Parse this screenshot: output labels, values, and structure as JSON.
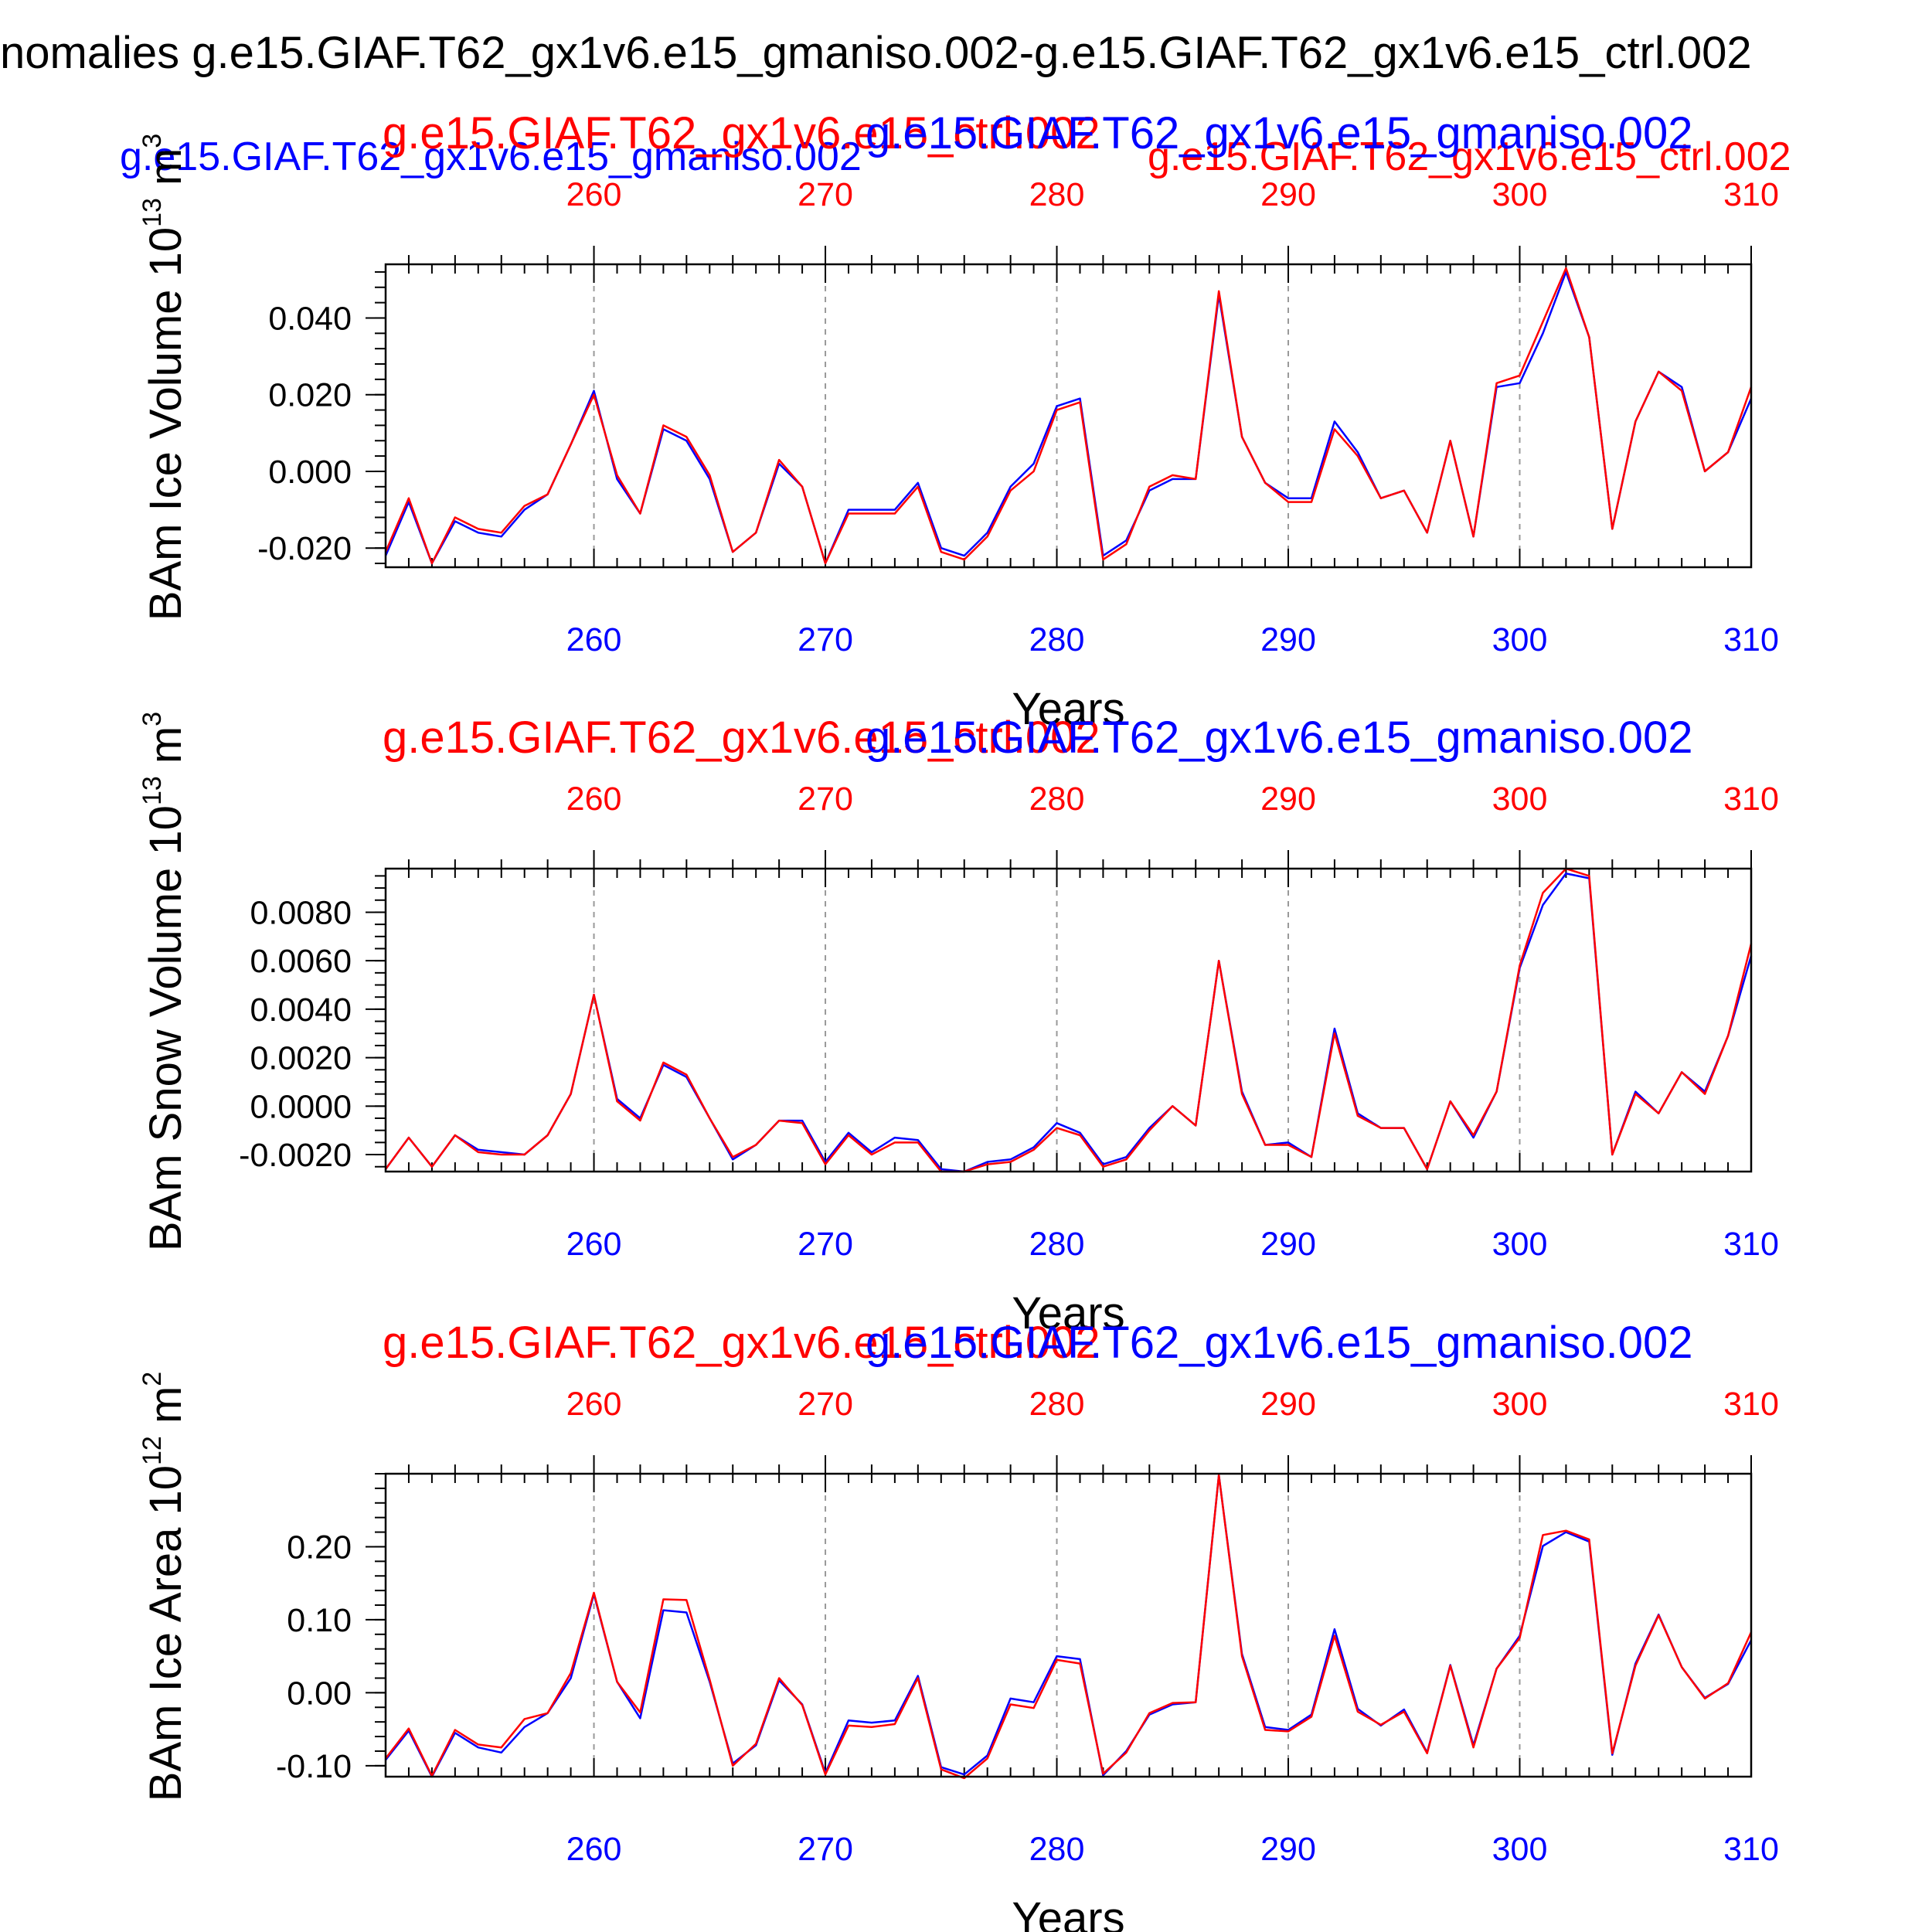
{
  "figure": {
    "title": "nomalies g.e15.GIAF.T62_gx1v6.e15_gmaniso.002-g.e15.GIAF.T62_gx1v6.e15_ctrl.002",
    "top_legend": {
      "blue_label": "g.e15.GIAF.T62_gx1v6.e15_gmaniso.002",
      "red_label": "g.e15.GIAF.T62_gx1v6.e15_ctrl.002"
    }
  },
  "colors": {
    "blue": "#0000ff",
    "red": "#ff0000",
    "black": "#000000",
    "grid": "#999999"
  },
  "chart_data": [
    {
      "type": "line",
      "name": "ice-volume",
      "ylabel": "BAm Ice Volume",
      "yunit_base": "10",
      "yunit_exp": "13",
      "yunit_rest": "m",
      "yunit_pow": "3",
      "xlabel": "Years",
      "top_title_red": "g.e15.GIAF.T62_gx1v6.e15_ctrl.002",
      "top_title_blue": "g.e15.GIAF.T62_gx1v6.e15_gmaniso.002",
      "xlim": [
        251,
        310
      ],
      "ylim": [
        -0.025,
        0.054
      ],
      "xticks": [
        260,
        270,
        280,
        290,
        300,
        310
      ],
      "yticks": [
        -0.02,
        0.0,
        0.02,
        0.04
      ],
      "ytick_labels": [
        "-0.020",
        "0.000",
        "0.020",
        "0.040"
      ],
      "minor_ytick_step": 0.004,
      "x_start": 251,
      "series": [
        {
          "name": "gmaniso.002",
          "color": "blue",
          "values": [
            -0.022,
            -0.008,
            -0.024,
            -0.013,
            -0.016,
            -0.017,
            -0.01,
            -0.006,
            0.007,
            0.021,
            -0.002,
            -0.011,
            0.011,
            0.008,
            -0.002,
            -0.021,
            -0.016,
            0.002,
            -0.004,
            -0.024,
            -0.01,
            -0.01,
            -0.01,
            -0.003,
            -0.02,
            -0.022,
            -0.016,
            -0.004,
            0.002,
            0.017,
            0.019,
            -0.022,
            -0.018,
            -0.005,
            -0.002,
            -0.002,
            0.046,
            0.009,
            -0.003,
            -0.007,
            -0.007,
            0.013,
            0.005,
            -0.007,
            -0.005,
            -0.016,
            0.008,
            -0.017,
            0.022,
            0.023,
            0.036,
            0.052,
            0.035,
            -0.015,
            0.013,
            0.026,
            0.022,
            -0.0,
            0.005,
            0.019
          ]
        },
        {
          "name": "ctrl.002",
          "color": "red",
          "values": [
            -0.021,
            -0.007,
            -0.024,
            -0.012,
            -0.015,
            -0.016,
            -0.009,
            -0.006,
            0.007,
            0.02,
            -0.001,
            -0.011,
            0.012,
            0.009,
            -0.001,
            -0.021,
            -0.016,
            0.003,
            -0.004,
            -0.024,
            -0.011,
            -0.011,
            -0.011,
            -0.004,
            -0.021,
            -0.023,
            -0.017,
            -0.005,
            0.0,
            0.016,
            0.018,
            -0.023,
            -0.019,
            -0.004,
            -0.001,
            -0.002,
            0.047,
            0.009,
            -0.003,
            -0.008,
            -0.008,
            0.011,
            0.004,
            -0.007,
            -0.005,
            -0.016,
            0.008,
            -0.017,
            0.023,
            0.025,
            0.039,
            0.053,
            0.035,
            -0.015,
            0.013,
            0.026,
            0.021,
            -0.0,
            0.005,
            0.022
          ]
        }
      ]
    },
    {
      "type": "line",
      "name": "snow-volume",
      "ylabel": "BAm Snow Volume",
      "yunit_base": "10",
      "yunit_exp": "13",
      "yunit_rest": "m",
      "yunit_pow": "3",
      "xlabel": "Years",
      "top_title_red": "g.e15.GIAF.T62_gx1v6.e15_ctrl.002",
      "top_title_blue": "g.e15.GIAF.T62_gx1v6.e15_gmaniso.002",
      "xlim": [
        251,
        310
      ],
      "ylim": [
        -0.0027,
        0.0098
      ],
      "xticks": [
        260,
        270,
        280,
        290,
        300,
        310
      ],
      "yticks": [
        -0.002,
        0.0,
        0.002,
        0.004,
        0.006,
        0.008
      ],
      "ytick_labels": [
        "-0.0020",
        "0.0000",
        "0.0020",
        "0.0040",
        "0.0060",
        "0.0080"
      ],
      "minor_ytick_step": 0.0005,
      "x_start": 251,
      "series": [
        {
          "name": "gmaniso.002",
          "color": "blue",
          "values": [
            -0.0026,
            -0.0013,
            -0.0025,
            -0.0012,
            -0.0018,
            -0.0019,
            -0.002,
            -0.0012,
            0.0005,
            0.0046,
            0.0003,
            -0.0005,
            0.0017,
            0.0012,
            -0.0005,
            -0.0022,
            -0.0016,
            -0.0006,
            -0.0006,
            -0.0023,
            -0.0011,
            -0.0019,
            -0.0013,
            -0.0014,
            -0.0026,
            -0.0027,
            -0.0023,
            -0.0022,
            -0.0017,
            -0.0007,
            -0.0011,
            -0.0024,
            -0.0021,
            -0.0009,
            0.0,
            -0.0008,
            0.006,
            0.0006,
            -0.0016,
            -0.0015,
            -0.0021,
            0.0032,
            -0.0003,
            -0.0009,
            -0.0009,
            -0.0026,
            0.0002,
            -0.0013,
            0.0006,
            0.0057,
            0.0083,
            0.0096,
            0.0094,
            -0.002,
            0.0006,
            -0.0003,
            0.0014,
            0.0006,
            0.0029,
            0.0062
          ]
        },
        {
          "name": "ctrl.002",
          "color": "red",
          "values": [
            -0.0026,
            -0.0013,
            -0.0025,
            -0.0012,
            -0.0019,
            -0.002,
            -0.002,
            -0.0012,
            0.0005,
            0.0046,
            0.0002,
            -0.0006,
            0.0018,
            0.0013,
            -0.0005,
            -0.0021,
            -0.0016,
            -0.0006,
            -0.0007,
            -0.0024,
            -0.0012,
            -0.002,
            -0.0015,
            -0.0015,
            -0.0027,
            -0.0027,
            -0.0024,
            -0.0023,
            -0.0018,
            -0.0009,
            -0.0012,
            -0.0025,
            -0.0022,
            -0.001,
            0.0,
            -0.0008,
            0.006,
            0.0005,
            -0.0016,
            -0.0016,
            -0.0021,
            0.003,
            -0.0004,
            -0.0009,
            -0.0009,
            -0.0026,
            0.0002,
            -0.0012,
            0.0006,
            0.0058,
            0.0088,
            0.0098,
            0.0095,
            -0.002,
            0.0005,
            -0.0003,
            0.0014,
            0.0005,
            0.0029,
            0.0067
          ]
        }
      ]
    },
    {
      "type": "line",
      "name": "ice-area",
      "ylabel": "BAm Ice Area",
      "yunit_base": "10",
      "yunit_exp": "12",
      "yunit_rest": "m",
      "yunit_pow": "2",
      "xlabel": "Years",
      "top_title_red": "g.e15.GIAF.T62_gx1v6.e15_ctrl.002",
      "top_title_blue": "g.e15.GIAF.T62_gx1v6.e15_gmaniso.002",
      "xlim": [
        251,
        310
      ],
      "ylim": [
        -0.115,
        0.3
      ],
      "xticks": [
        260,
        270,
        280,
        290,
        300,
        310
      ],
      "yticks": [
        -0.1,
        0.0,
        0.1,
        0.2
      ],
      "ytick_labels": [
        "-0.10",
        "0.00",
        "0.10",
        "0.20"
      ],
      "minor_ytick_step": 0.02,
      "x_start": 251,
      "series": [
        {
          "name": "gmaniso.002",
          "color": "blue",
          "values": [
            -0.092,
            -0.052,
            -0.115,
            -0.055,
            -0.075,
            -0.082,
            -0.047,
            -0.028,
            0.02,
            0.135,
            0.015,
            -0.035,
            0.113,
            0.11,
            0.015,
            -0.097,
            -0.072,
            0.017,
            -0.016,
            -0.11,
            -0.038,
            -0.041,
            -0.038,
            0.023,
            -0.102,
            -0.112,
            -0.086,
            -0.008,
            -0.013,
            0.05,
            0.046,
            -0.113,
            -0.08,
            -0.03,
            -0.016,
            -0.013,
            0.298,
            0.053,
            -0.047,
            -0.051,
            -0.03,
            0.087,
            -0.022,
            -0.045,
            -0.023,
            -0.082,
            0.038,
            -0.072,
            0.033,
            0.078,
            0.201,
            0.22,
            0.207,
            -0.085,
            0.04,
            0.107,
            0.035,
            -0.007,
            0.012,
            0.072
          ]
        },
        {
          "name": "ctrl.002",
          "color": "red",
          "values": [
            -0.09,
            -0.049,
            -0.114,
            -0.051,
            -0.071,
            -0.075,
            -0.036,
            -0.028,
            0.027,
            0.137,
            0.015,
            -0.027,
            0.128,
            0.127,
            0.018,
            -0.1,
            -0.07,
            0.02,
            -0.017,
            -0.112,
            -0.045,
            -0.047,
            -0.043,
            0.02,
            -0.105,
            -0.117,
            -0.09,
            -0.016,
            -0.021,
            0.045,
            0.04,
            -0.111,
            -0.082,
            -0.028,
            -0.014,
            -0.013,
            0.298,
            0.05,
            -0.051,
            -0.053,
            -0.033,
            0.078,
            -0.026,
            -0.044,
            -0.026,
            -0.083,
            0.037,
            -0.075,
            0.033,
            0.075,
            0.216,
            0.222,
            0.21,
            -0.083,
            0.037,
            0.106,
            0.035,
            -0.008,
            0.013,
            0.083
          ]
        }
      ]
    }
  ]
}
